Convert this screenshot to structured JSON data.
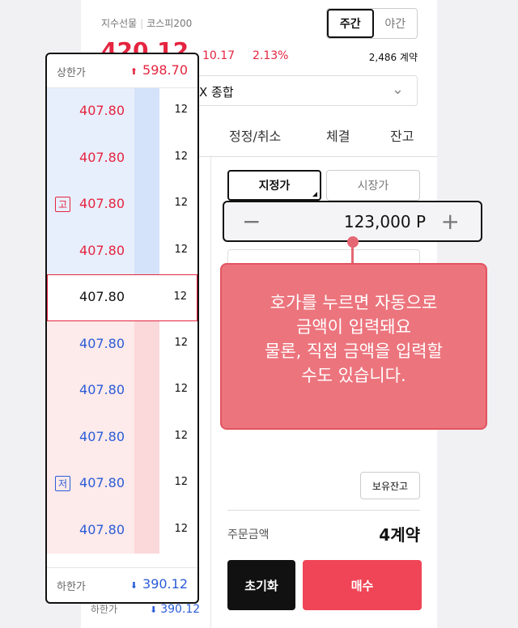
{
  "header": {
    "category": "지수선물",
    "index": "코스피200",
    "session_day": "주간",
    "session_night": "야간",
    "price": "420.12",
    "change": "10.17",
    "change_pct": "2.13%",
    "volume": "2,486 계약"
  },
  "account": {
    "label": "X 종합"
  },
  "tabs": [
    "정정/취소",
    "체결",
    "잔고"
  ],
  "order": {
    "type_limit": "지정가",
    "type_market": "시장가",
    "price_value": "123,000",
    "currency_symbol": "P",
    "minus_symbol": "−",
    "plus_symbol": "+",
    "holdings_button": "보유잔고",
    "amount_label": "주문금액",
    "amount_value": "4계약",
    "reset_button": "초기화",
    "buy_button": "매수"
  },
  "orderbook": {
    "upper_label": "상한가",
    "upper_value": "598.70",
    "lower_label": "하한가",
    "lower_value": "390.12",
    "rows": [
      {
        "price": "407.80",
        "qty": "12",
        "side": "ask"
      },
      {
        "price": "407.80",
        "qty": "12",
        "side": "ask"
      },
      {
        "price": "407.80",
        "qty": "12",
        "side": "ask",
        "tag": "고"
      },
      {
        "price": "407.80",
        "qty": "12",
        "side": "ask"
      },
      {
        "price": "407.80",
        "qty": "12",
        "side": "current"
      },
      {
        "price": "407.80",
        "qty": "12",
        "side": "bid"
      },
      {
        "price": "407.80",
        "qty": "12",
        "side": "bid"
      },
      {
        "price": "407.80",
        "qty": "12",
        "side": "bid"
      },
      {
        "price": "407.80",
        "qty": "12",
        "side": "bid",
        "tag": "저"
      },
      {
        "price": "407.80",
        "qty": "12",
        "side": "bid"
      }
    ]
  },
  "background_lower": {
    "label": "하한가",
    "value": "390.12"
  },
  "tooltip": {
    "lines": [
      "호가를 누르면 자동으로",
      "금액이 입력돼요",
      "물론, 직접 금액을 입력할",
      "수도 있습니다."
    ]
  },
  "colors": {
    "up": "#e5243f",
    "down": "#2b5cd8",
    "buy": "#f04557",
    "tooltip": "#ec747d"
  }
}
